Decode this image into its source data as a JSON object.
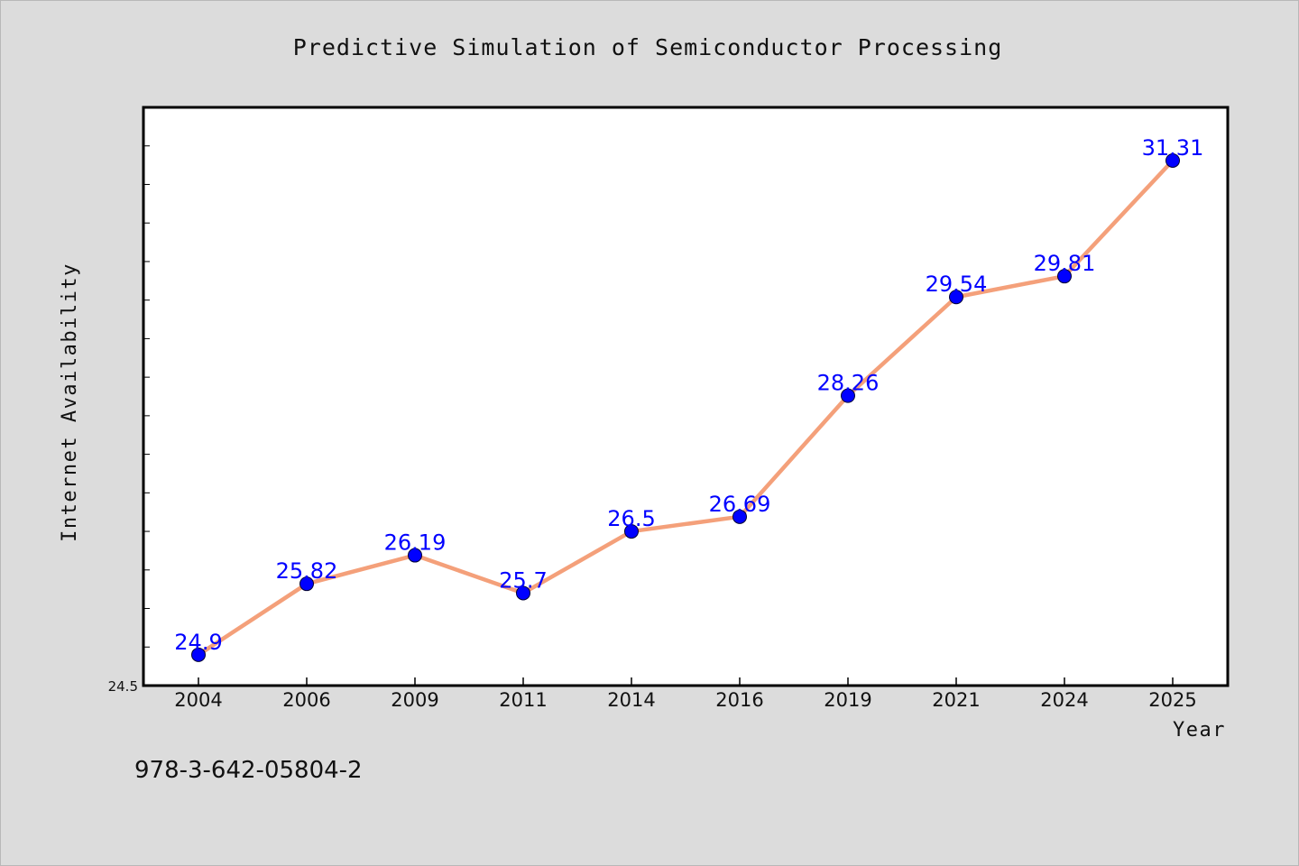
{
  "colors": {
    "background": "#dcdcdc",
    "plot_background": "#ffffff",
    "line": "#f4a07a",
    "marker": "#0000ff",
    "data_label": "#0000ff"
  },
  "footer": {
    "isbn": "978-3-642-05804-2"
  },
  "chart_data": {
    "type": "line",
    "title": "Predictive Simulation of Semiconductor Processing",
    "xlabel": "Year",
    "ylabel": "Internet Availability",
    "categories": [
      "2004",
      "2006",
      "2009",
      "2011",
      "2014",
      "2016",
      "2019",
      "2021",
      "2024",
      "2025"
    ],
    "series": [
      {
        "values": [
          24.9,
          25.82,
          26.19,
          25.7,
          26.5,
          26.69,
          28.26,
          29.54,
          29.81,
          31.31
        ],
        "labels": [
          "24.9",
          "25.82",
          "26.19",
          "25.7",
          "26.5",
          "26.69",
          "28.26",
          "29.54",
          "29.81",
          "31.31"
        ]
      }
    ],
    "ylim": [
      24.5,
      32.0
    ],
    "y_minor_tick_step": 0.5,
    "y_tick_labels": [
      "24.5"
    ],
    "grid": false,
    "legend": "none"
  }
}
